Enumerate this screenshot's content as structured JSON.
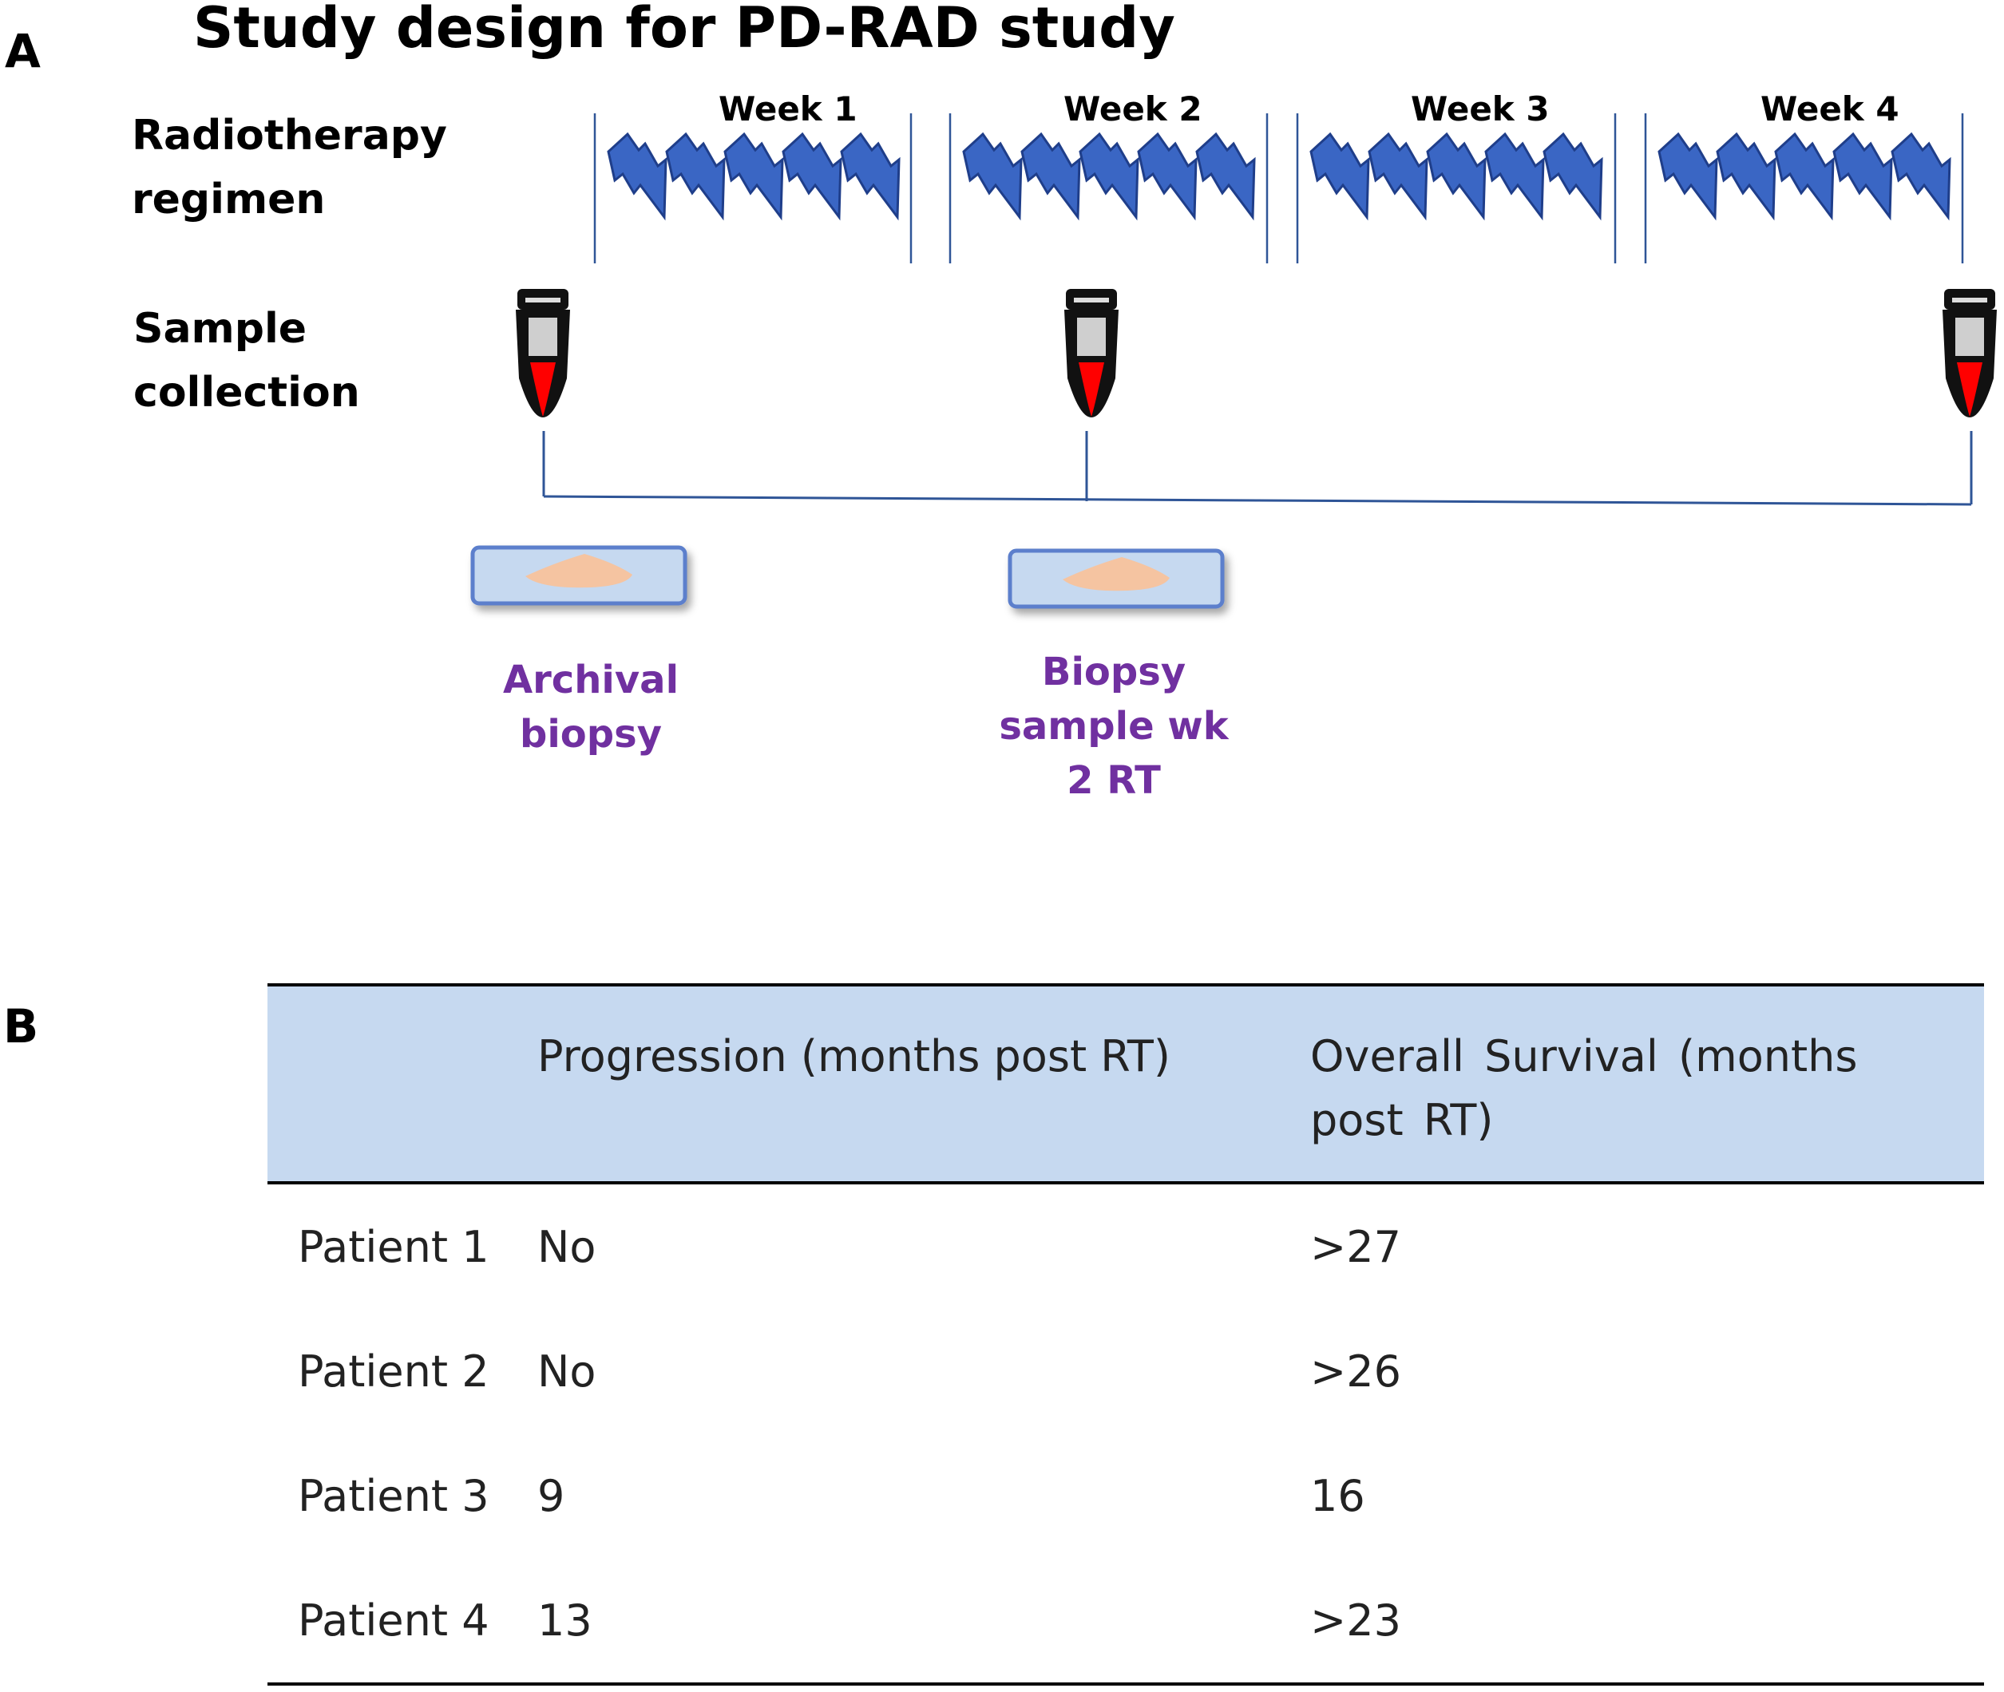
{
  "panel_a": {
    "letter": "A",
    "title": "Study design for PD-RAD study",
    "rows": {
      "radiotherapy_label": "Radiotherapy regimen",
      "sample_label": "Sample collection"
    },
    "weeks": [
      "Week 1",
      "Week 2",
      "Week 3",
      "Week 4"
    ],
    "biopsies": [
      {
        "label": "Archival biopsy"
      },
      {
        "label": "Biopsy sample wk 2 RT"
      }
    ],
    "colors": {
      "bolt": "#3A66C4",
      "bolt_edge": "#1F3E8A",
      "line": "#2F5597",
      "slide_fill": "#C6D9F0",
      "slide_edge": "#5B7FCC",
      "tissue": "#F5C4A1",
      "blood": "#FF0000",
      "biopsy_text": "#7030A0"
    }
  },
  "panel_b": {
    "letter": "B",
    "columns": [
      "",
      "Progression (months post RT)",
      "Overall  Survival  (months  post RT)"
    ],
    "rows": [
      [
        "Patient 1",
        "No",
        ">27"
      ],
      [
        "Patient 2",
        "No",
        ">26"
      ],
      [
        "Patient 3",
        "9",
        "16"
      ],
      [
        "Patient 4",
        "13",
        ">23"
      ]
    ]
  }
}
